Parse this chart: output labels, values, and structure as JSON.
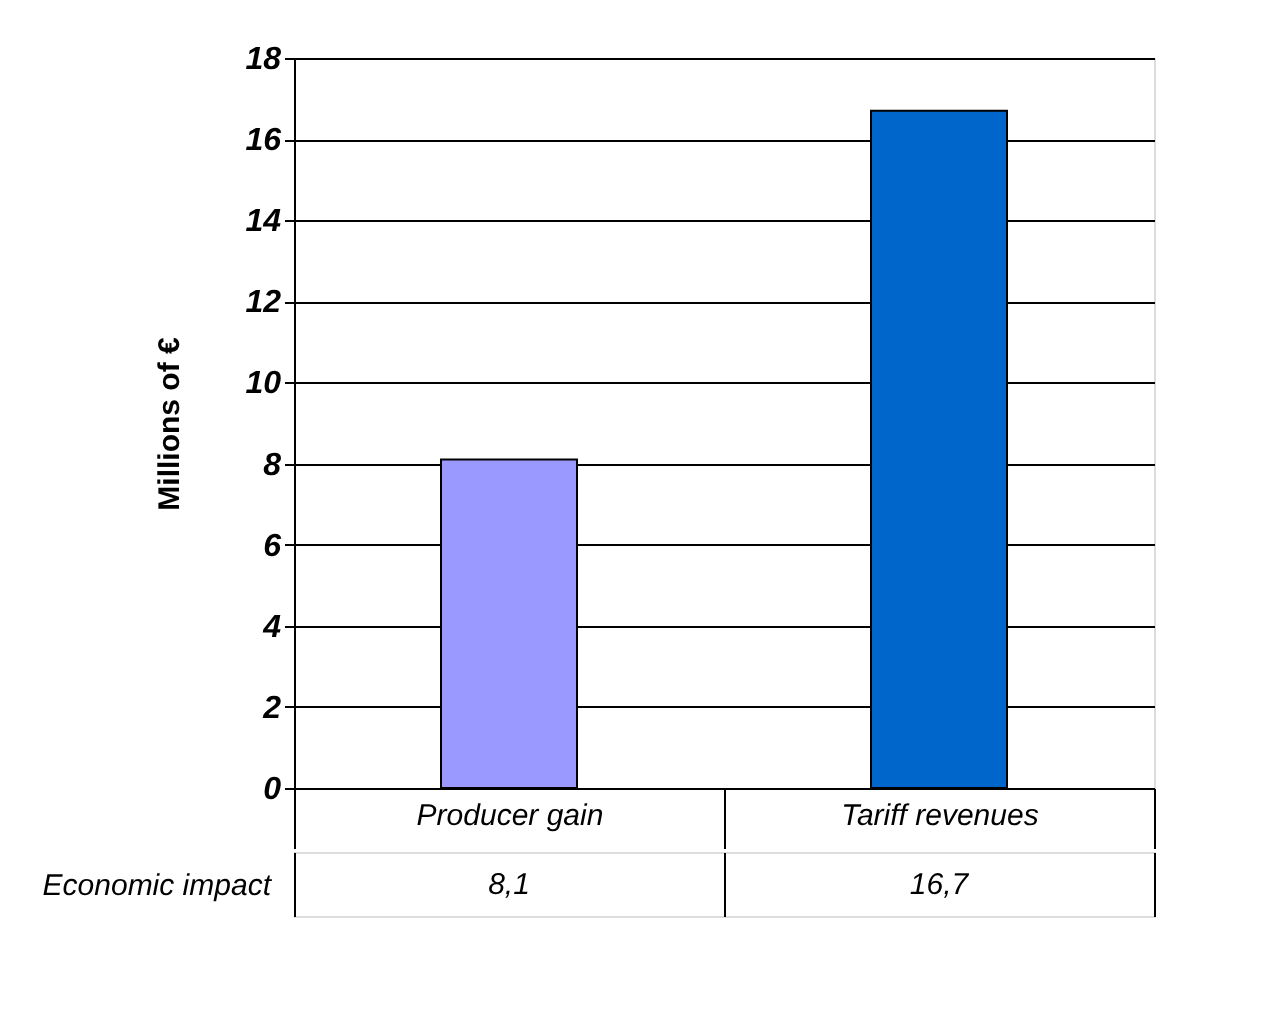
{
  "chart_data": {
    "type": "bar",
    "ylabel": "Millions of €",
    "categories": [
      "Producer gain",
      "Tariff revenues"
    ],
    "series": [
      {
        "name": "Economic impact",
        "values": [
          8.1,
          16.7
        ],
        "value_labels": [
          "8,1",
          "16,7"
        ]
      }
    ],
    "colors": [
      "#9999ff",
      "#0066cc"
    ],
    "ylim": [
      0,
      18
    ],
    "yticks": [
      0,
      2,
      4,
      6,
      8,
      10,
      12,
      14,
      16,
      18
    ],
    "grid": "y"
  }
}
